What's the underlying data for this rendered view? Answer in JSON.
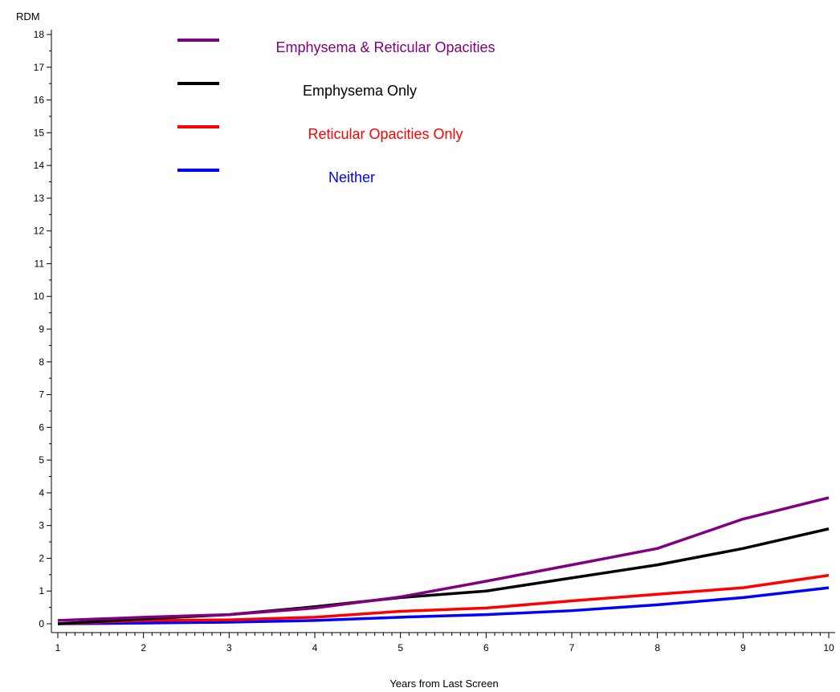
{
  "chart_data": {
    "type": "line",
    "title": "",
    "xlabel": "Years from Last Screen",
    "ylabel": "RDM",
    "x": [
      1,
      2,
      3,
      4,
      5,
      6,
      7,
      8,
      9,
      10
    ],
    "xlim": [
      1,
      10
    ],
    "ylim": [
      0,
      18
    ],
    "x_ticks": [
      "1",
      "2",
      "3",
      "4",
      "5",
      "6",
      "7",
      "8",
      "9",
      "10"
    ],
    "y_ticks": [
      "0",
      "1",
      "2",
      "3",
      "4",
      "5",
      "6",
      "7",
      "8",
      "9",
      "10",
      "11",
      "12",
      "13",
      "14",
      "15",
      "16",
      "17",
      "18"
    ],
    "grid": false,
    "legend_position": "top-left",
    "series": [
      {
        "name": "Emphysema & Reticular Opacities",
        "color": "#800080",
        "values": [
          0.1,
          0.2,
          0.28,
          0.48,
          0.82,
          1.3,
          1.8,
          2.3,
          3.2,
          3.85
        ]
      },
      {
        "name": "Emphysema Only",
        "color": "#000000",
        "values": [
          0.0,
          0.15,
          0.28,
          0.52,
          0.8,
          1.0,
          1.4,
          1.8,
          2.3,
          2.9
        ]
      },
      {
        "name": "Reticular Opacities Only",
        "color": "#ff0000",
        "values": [
          0.0,
          0.1,
          0.12,
          0.2,
          0.38,
          0.48,
          0.7,
          0.9,
          1.1,
          1.48
        ]
      },
      {
        "name": "Neither",
        "color": "#0000ff",
        "values": [
          0.0,
          0.02,
          0.05,
          0.1,
          0.2,
          0.28,
          0.4,
          0.58,
          0.8,
          1.1
        ]
      }
    ]
  }
}
